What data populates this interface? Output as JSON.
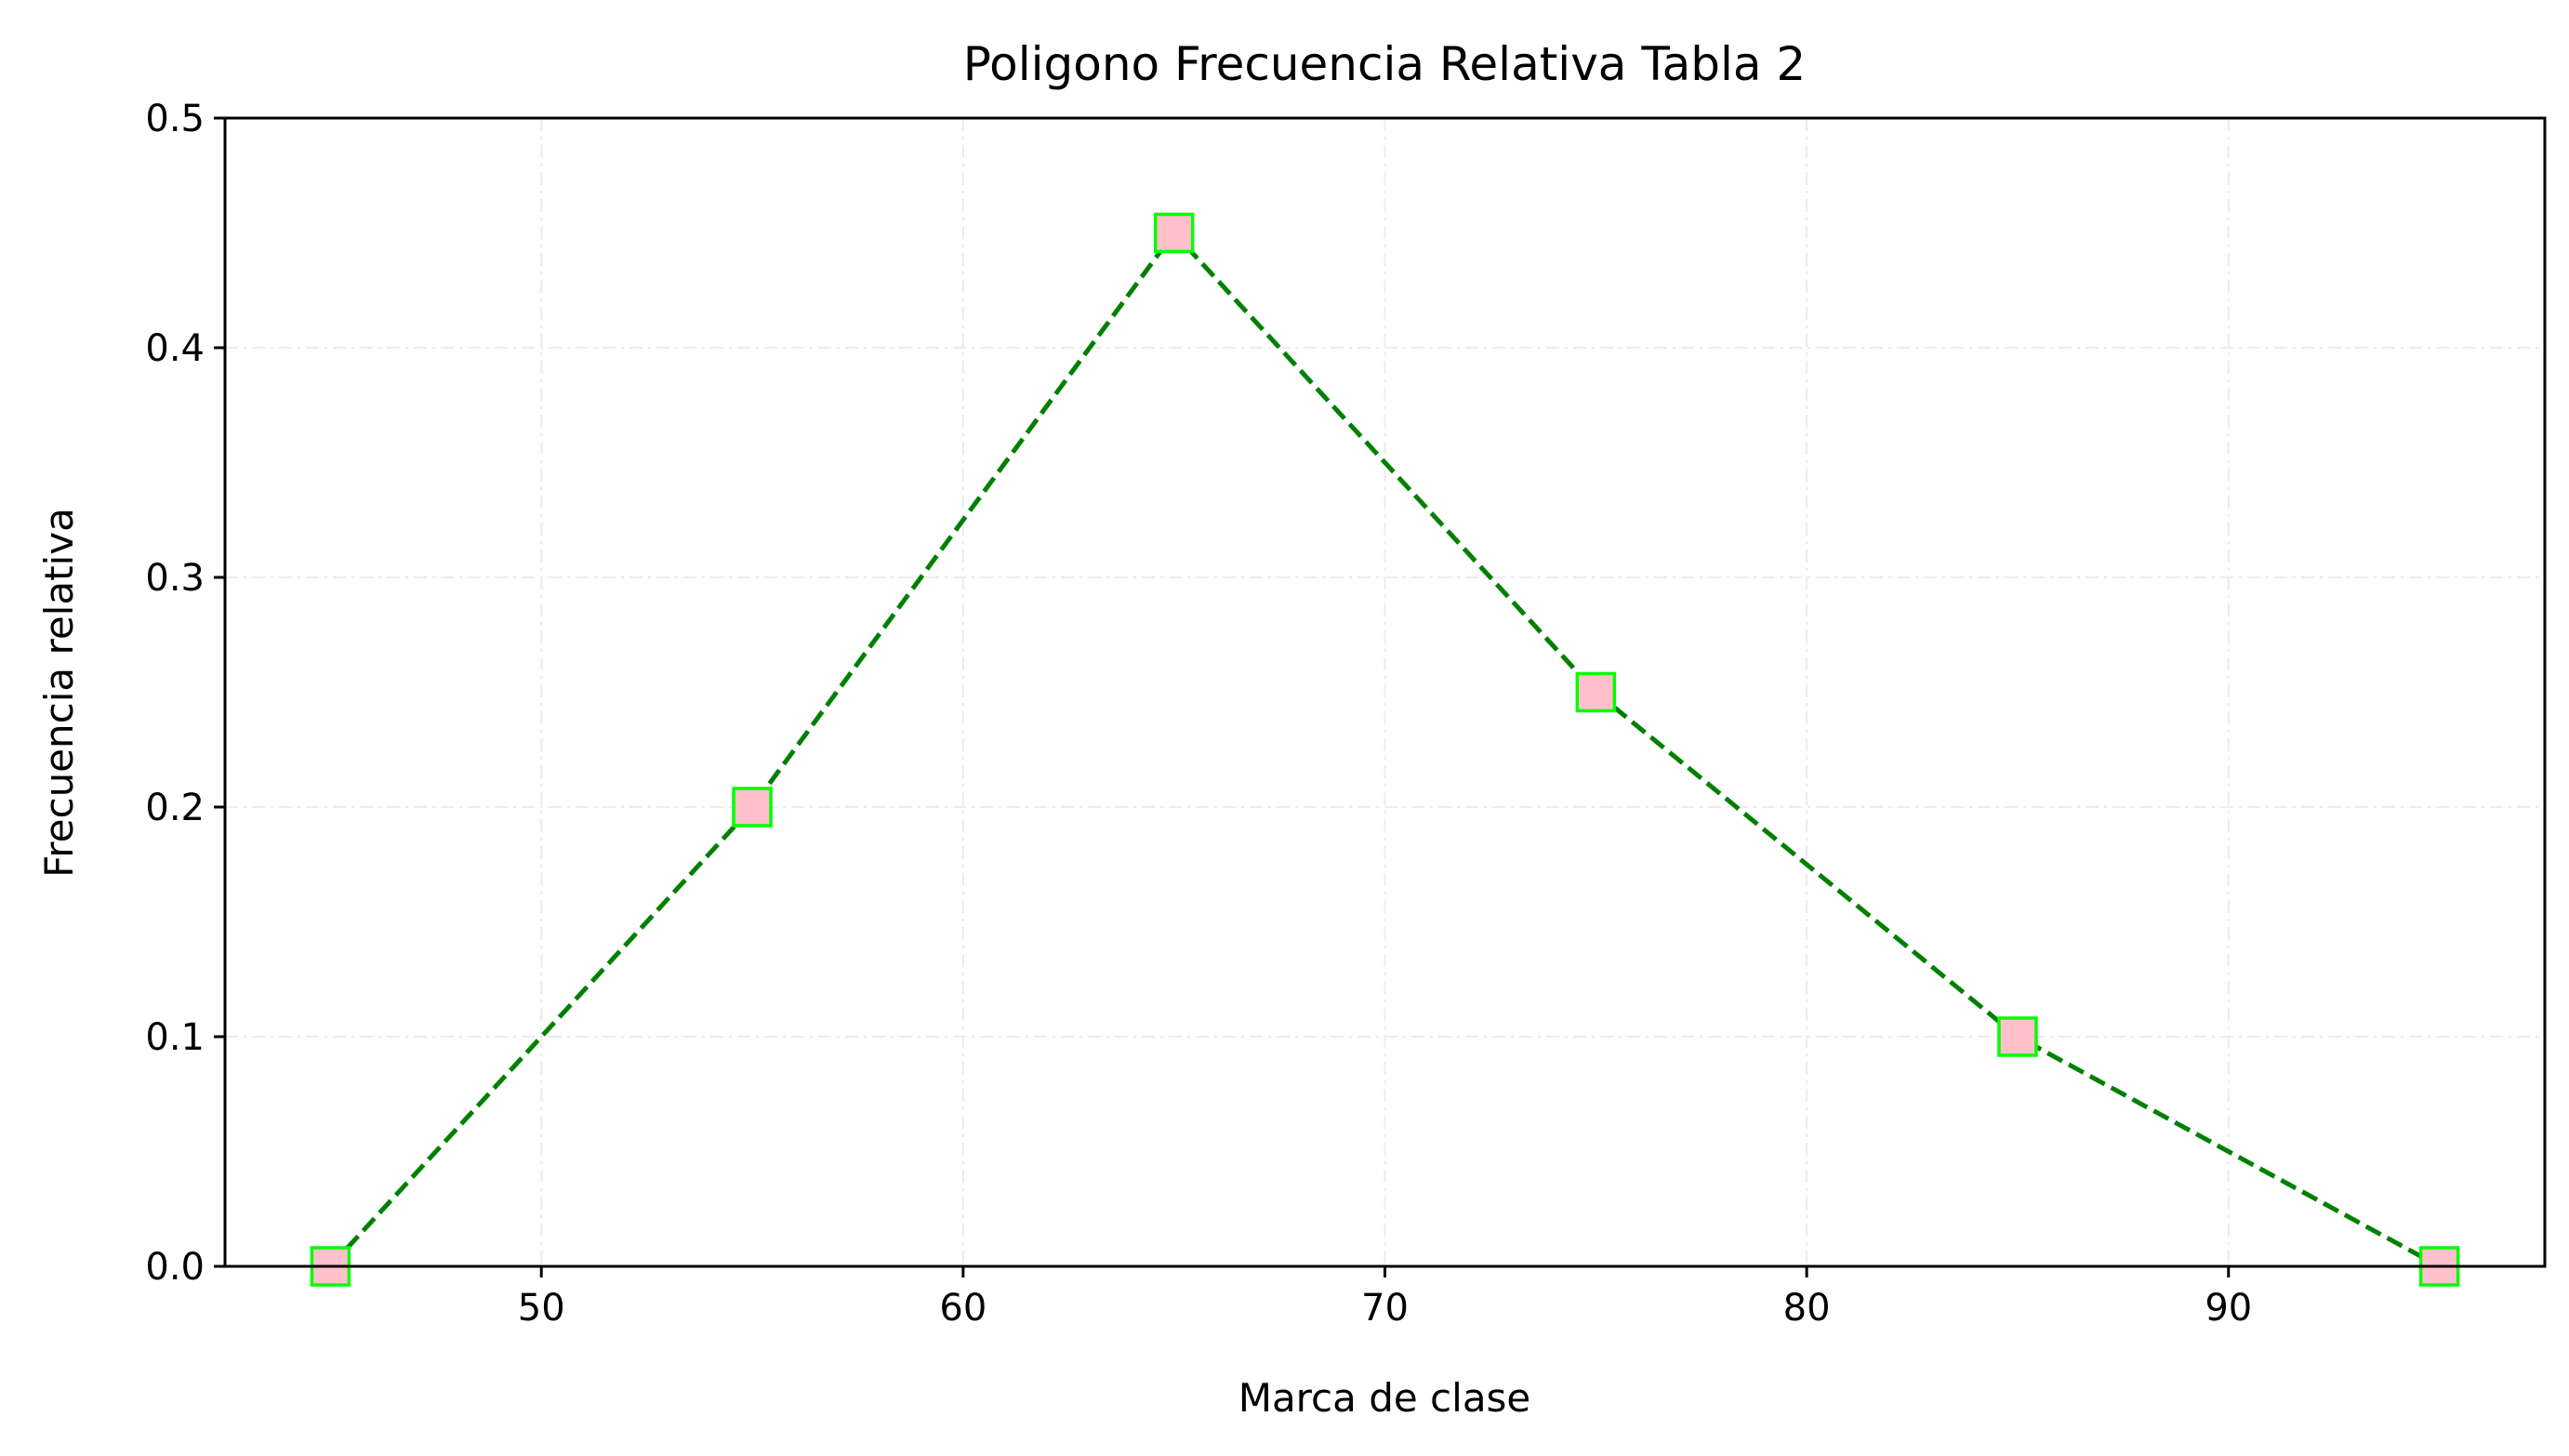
{
  "chart_data": {
    "type": "line",
    "title": "Poligono Frecuencia Relativa Tabla 2",
    "xlabel": "Marca de clase",
    "ylabel": "Frecuencia relativa",
    "xlim": [
      42.5,
      97.5
    ],
    "ylim": [
      0,
      0.5
    ],
    "xticks": [
      50,
      60,
      70,
      80,
      90
    ],
    "xtick_labels": [
      "50",
      "60",
      "70",
      "80",
      "90"
    ],
    "yticks": [
      0,
      0.1,
      0.2,
      0.3,
      0.4,
      0.5
    ],
    "ytick_labels": [
      "0.0",
      "0.1",
      "0.2",
      "0.3",
      "0.4",
      "0.5"
    ],
    "grid": true,
    "series": [
      {
        "x": [
          45,
          55,
          65,
          75,
          85,
          95
        ],
        "y": [
          0.0,
          0.2,
          0.45,
          0.25,
          0.1,
          0.0
        ],
        "line_color": "#008000",
        "line_style": "dashed",
        "marker": "square",
        "marker_face": "#ffc0cb",
        "marker_edge": "#00ff00"
      }
    ]
  }
}
